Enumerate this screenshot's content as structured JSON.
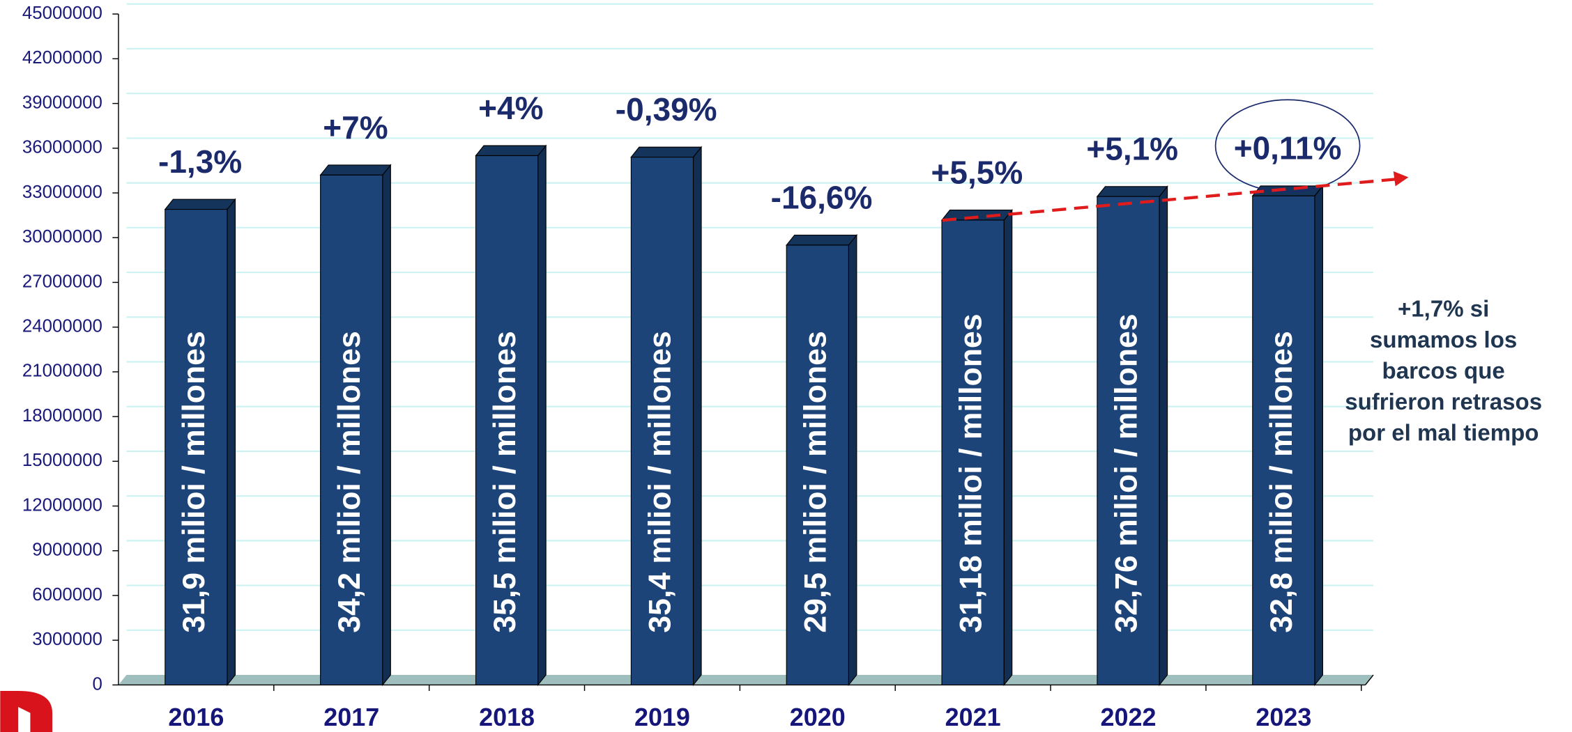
{
  "chart_data": {
    "type": "bar",
    "categories": [
      "2016",
      "2017",
      "2018",
      "2019",
      "2020",
      "2021",
      "2022",
      "2023"
    ],
    "values": [
      31900000,
      34200000,
      35500000,
      35400000,
      29500000,
      31180000,
      32760000,
      32800000
    ],
    "value_labels": [
      "31,9 milioi / millones",
      "34,2 milioi / millones",
      "35,5 milioi / millones",
      "35,4 milioi / millones",
      "29,5  milioi / millones",
      "31,18  milioi / millones",
      "32,76  milioi / millones",
      "32,8  milioi / millones"
    ],
    "change_labels": [
      "-1,3%",
      "+7%",
      "+4%",
      "-0,39%",
      "-16,6%",
      "+5,5%",
      "+5,1%",
      "+0,11%"
    ],
    "note": [
      "+1,7% si",
      "sumamos los",
      "barcos que",
      "sufrieron retrasos",
      "por el mal tiempo"
    ],
    "color": "#1c4478",
    "ylim": [
      0,
      45000000
    ],
    "yticks": [
      0,
      3000000,
      6000000,
      9000000,
      12000000,
      15000000,
      18000000,
      21000000,
      24000000,
      27000000,
      30000000,
      33000000,
      36000000,
      39000000,
      42000000,
      45000000
    ],
    "grid": true
  }
}
